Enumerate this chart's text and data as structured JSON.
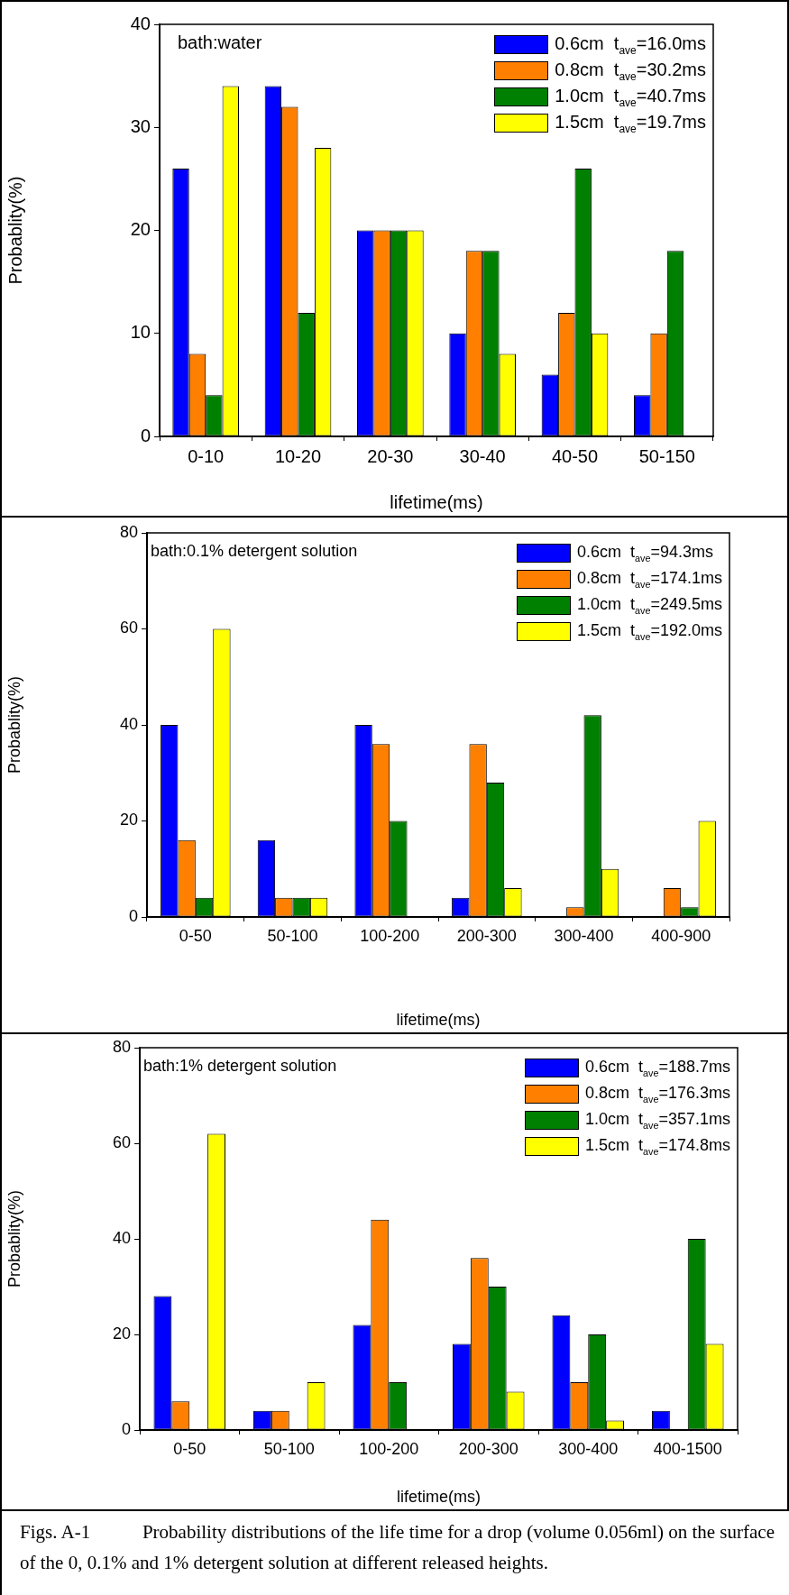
{
  "chart_data": [
    {
      "type": "bar",
      "title": "bath:water",
      "categories": [
        "0-10",
        "10-20",
        "20-30",
        "30-40",
        "40-50",
        "50-150"
      ],
      "xlabel": "lifetime(ms)",
      "ylabel": "Probablity(%)",
      "ylim": [
        0,
        40
      ],
      "yticks": [
        0,
        10,
        20,
        30,
        40
      ],
      "legend": "top right",
      "series": [
        {
          "name": "0.6cm  t$_{ave}$=16.0ms",
          "color": "#0000ff",
          "values": [
            26,
            34,
            20,
            10,
            6,
            4
          ]
        },
        {
          "name": "0.8cm  t$_{ave}$=30.2ms",
          "color": "#ff8000",
          "values": [
            8,
            32,
            20,
            18,
            12,
            10
          ]
        },
        {
          "name": "1.0cm  t$_{ave}$=40.7ms",
          "color": "#008000",
          "values": [
            4,
            12,
            20,
            18,
            26,
            18
          ]
        },
        {
          "name": "1.5cm  t$_{ave}$=19.7ms",
          "color": "#ffff00",
          "values": [
            34,
            28,
            20,
            8,
            10,
            null
          ]
        }
      ]
    },
    {
      "type": "bar",
      "title": "bath:0.1% detergent solution",
      "categories": [
        "0-50",
        "50-100",
        "100-200",
        "200-300",
        "300-400",
        "400-900"
      ],
      "xlabel": "lifetime(ms)",
      "ylabel": "Probablity(%)",
      "ylim": [
        0,
        80
      ],
      "yticks": [
        0,
        20,
        40,
        60,
        80
      ],
      "legend": "top right",
      "series": [
        {
          "name": "0.6cm  t$_{ave}$=94.3ms",
          "color": "#0000ff",
          "values": [
            40,
            16,
            40,
            4,
            null,
            null
          ]
        },
        {
          "name": "0.8cm  t$_{ave}$=174.1ms",
          "color": "#ff8000",
          "values": [
            16,
            4,
            36,
            36,
            2,
            6
          ]
        },
        {
          "name": "1.0cm  t$_{ave}$=249.5ms",
          "color": "#008000",
          "values": [
            4,
            4,
            20,
            28,
            42,
            2
          ]
        },
        {
          "name": "1.5cm  t$_{ave}$=192.0ms",
          "color": "#ffff00",
          "values": [
            60,
            4,
            null,
            6,
            10,
            20
          ]
        }
      ]
    },
    {
      "type": "bar",
      "title": "bath:1% detergent solution",
      "categories": [
        "0-50",
        "50-100",
        "100-200",
        "200-300",
        "300-400",
        "400-1500"
      ],
      "xlabel": "lifetime(ms)",
      "ylabel": "Probablity(%)",
      "ylim": [
        0,
        80
      ],
      "yticks": [
        0,
        20,
        40,
        60,
        80
      ],
      "legend": "top right",
      "series": [
        {
          "name": "0.6cm  t$_{ave}$=188.7ms",
          "color": "#0000ff",
          "values": [
            28,
            4,
            22,
            18,
            24,
            4
          ]
        },
        {
          "name": "0.8cm  t$_{ave}$=176.3ms",
          "color": "#ff8000",
          "values": [
            6,
            4,
            44,
            36,
            10,
            null
          ]
        },
        {
          "name": "1.0cm  t$_{ave}$=357.1ms",
          "color": "#008000",
          "values": [
            null,
            null,
            10,
            30,
            20,
            40
          ]
        },
        {
          "name": "1.5cm  t$_{ave}$=174.8ms",
          "color": "#ffff00",
          "values": [
            62,
            10,
            null,
            8,
            2,
            18
          ]
        }
      ],
      "annotations": [
        "Figs. A-1      Probability distributions of the life time for a drop (volume 0.056ml) on the surface of the 0, 0.1% and 1% detergent solution at different released heights."
      ]
    }
  ]
}
